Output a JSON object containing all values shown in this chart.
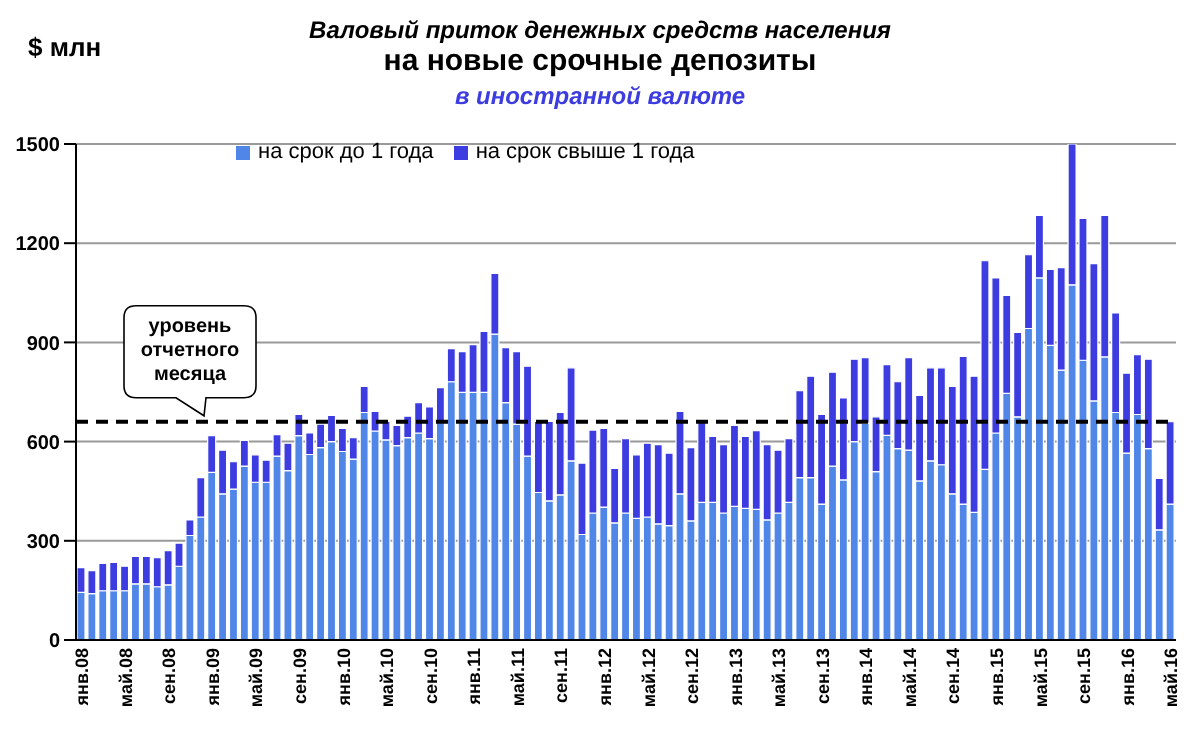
{
  "chart_data": {
    "type": "bar",
    "stacked": true,
    "title": "Валовый приток денежных средств населения",
    "subtitle": "на новые срочные депозиты",
    "annotations": [
      "в иностранной валюте"
    ],
    "ylabel": "$ млн",
    "categories": [
      "янв.08",
      null,
      null,
      null,
      "май.08",
      null,
      null,
      null,
      "сен.08",
      null,
      null,
      null,
      "янв.09",
      null,
      null,
      null,
      "май.09",
      null,
      null,
      null,
      "сен.09",
      null,
      null,
      null,
      "янв.10",
      null,
      null,
      null,
      "май.10",
      null,
      null,
      null,
      "сен.10",
      null,
      null,
      null,
      "янв.11",
      null,
      null,
      null,
      "май.11",
      null,
      null,
      null,
      "сен.11",
      null,
      null,
      null,
      "янв.12",
      null,
      null,
      null,
      "май.12",
      null,
      null,
      null,
      "сен.12",
      null,
      null,
      null,
      "янв.13",
      null,
      null,
      null,
      "май.13",
      null,
      null,
      null,
      "сен.13",
      null,
      null,
      null,
      "янв.14",
      null,
      null,
      null,
      "май.14",
      null,
      null,
      null,
      "сен.14",
      null,
      null,
      null,
      "янв.15",
      null,
      null,
      null,
      "май.15",
      null,
      null,
      null,
      "сен.15",
      null,
      null,
      null,
      "янв.16",
      null,
      null,
      null,
      "май.16"
    ],
    "series": [
      {
        "name": "на срок до 1 года",
        "color": "#4f86e8",
        "values": [
          144,
          140,
          149,
          149,
          149,
          170,
          170,
          161,
          167,
          223,
          316,
          372,
          507,
          442,
          456,
          526,
          477,
          477,
          556,
          512,
          618,
          561,
          582,
          600,
          570,
          547,
          688,
          632,
          605,
          588,
          612,
          626,
          609,
          661,
          781,
          749,
          749,
          749,
          925,
          718,
          653,
          556,
          446,
          421,
          439,
          542,
          319,
          384,
          402,
          354,
          384,
          368,
          372,
          351,
          346,
          442,
          360,
          416,
          416,
          384,
          404,
          398,
          395,
          363,
          384,
          416,
          491,
          491,
          411,
          526,
          484,
          600,
          656,
          509,
          619,
          579,
          574,
          481,
          542,
          530,
          442,
          411,
          386,
          516,
          626,
          746,
          675,
          942,
          1095,
          891,
          816,
          1074,
          846,
          723,
          856,
          688,
          565,
          682,
          579,
          333,
          411
        ]
      },
      {
        "name": "на срок свыше 1 года",
        "color": "#3c3ce0",
        "values": [
          75,
          70,
          83,
          86,
          74,
          83,
          83,
          88,
          103,
          70,
          47,
          119,
          111,
          132,
          83,
          78,
          83,
          67,
          65,
          83,
          64,
          65,
          71,
          79,
          70,
          65,
          79,
          59,
          56,
          61,
          65,
          92,
          96,
          102,
          100,
          123,
          144,
          184,
          184,
          166,
          219,
          272,
          215,
          240,
          249,
          281,
          216,
          251,
          238,
          165,
          225,
          192,
          223,
          240,
          219,
          249,
          222,
          245,
          200,
          207,
          245,
          218,
          238,
          228,
          190,
          193,
          263,
          307,
          271,
          284,
          248,
          249,
          198,
          166,
          214,
          202,
          280,
          259,
          281,
          293,
          325,
          447,
          412,
          631,
          469,
          296,
          255,
          223,
          189,
          230,
          310,
          426,
          429,
          415,
          428,
          301,
          242,
          181,
          270,
          156,
          249
        ]
      }
    ],
    "ylim": [
      0,
      1500
    ],
    "yticks": [
      0,
      300,
      600,
      900,
      1200,
      1500
    ],
    "grid": "y",
    "legend": "top",
    "ref_lines": [
      {
        "axis": "y",
        "value": 660,
        "label": "уровень отчетного месяца",
        "color": "#000000",
        "line_style": "dashed"
      }
    ]
  }
}
